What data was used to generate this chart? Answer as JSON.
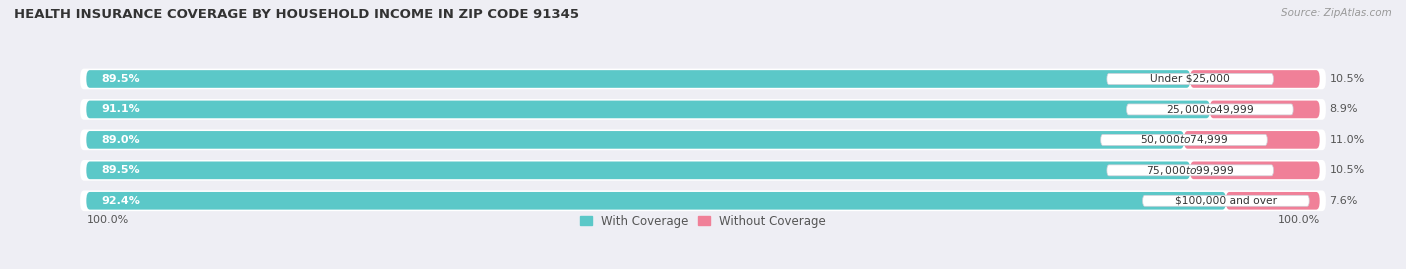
{
  "title": "HEALTH INSURANCE COVERAGE BY HOUSEHOLD INCOME IN ZIP CODE 91345",
  "source": "Source: ZipAtlas.com",
  "categories": [
    "Under $25,000",
    "$25,000 to $49,999",
    "$50,000 to $74,999",
    "$75,000 to $99,999",
    "$100,000 and over"
  ],
  "with_coverage": [
    89.5,
    91.1,
    89.0,
    89.5,
    92.4
  ],
  "without_coverage": [
    10.5,
    8.9,
    11.0,
    10.5,
    7.6
  ],
  "color_with": "#5BC8C8",
  "color_without": "#F08098",
  "background_color": "#eeeef4",
  "bar_background": "#ffffff",
  "bar_height": 0.58,
  "figsize": [
    14.06,
    2.69
  ],
  "dpi": 100,
  "title_fontsize": 9.5,
  "label_fontsize": 8.0,
  "legend_fontsize": 8.5,
  "axis_label_left": "100.0%",
  "axis_label_right": "100.0%"
}
